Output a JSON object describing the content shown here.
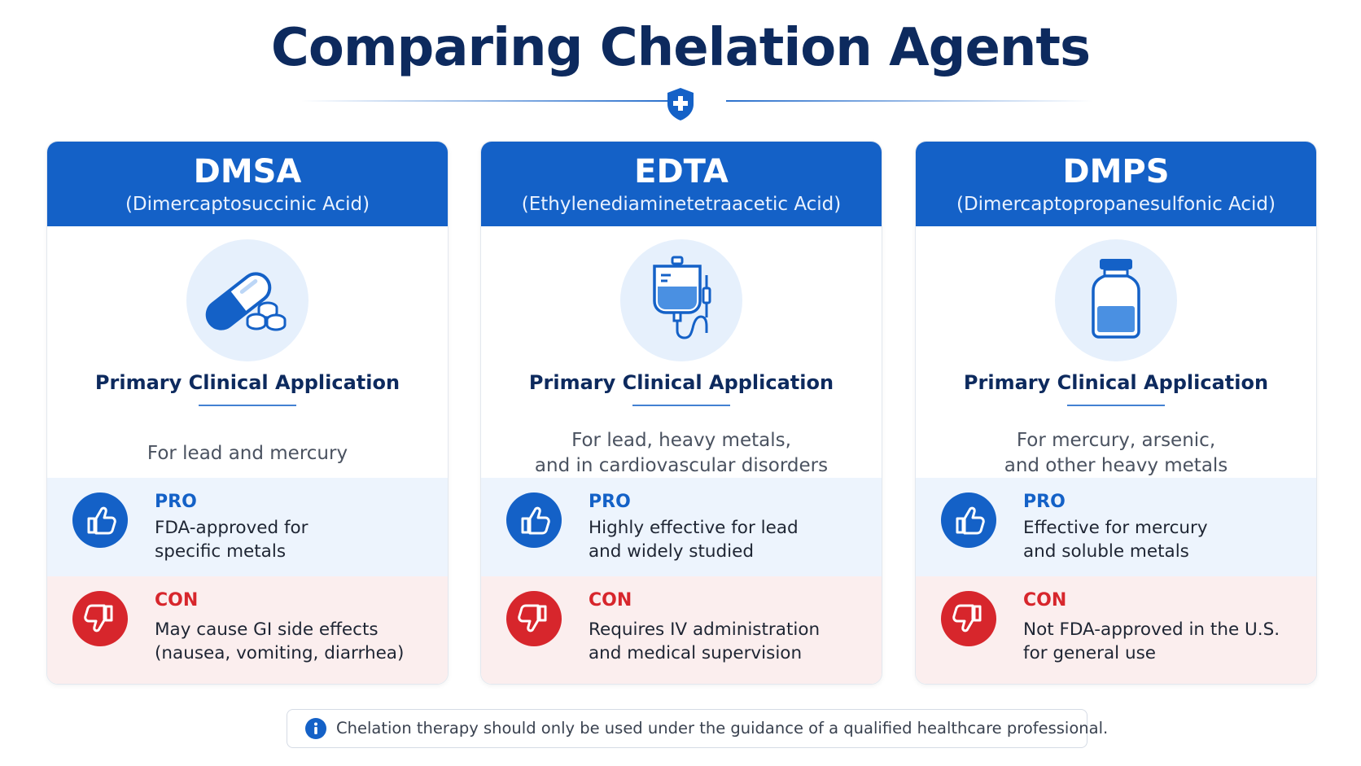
{
  "title": "Comparing Chelation Agents",
  "colors": {
    "navy": "#0d2a5e",
    "blue": "#1461c7",
    "red": "#d7262c",
    "pro_bg": "#edf4fd",
    "con_bg": "#fbeeee"
  },
  "divider_icon": "shield-plus-icon",
  "cards": [
    {
      "abbr": "DMSA",
      "full_name": "(Dimercaptosuccinic Acid)",
      "icon": "capsule-pills-icon",
      "app_title": "Primary Clinical Application",
      "application": "For lead and mercury",
      "pro_label": "PRO",
      "pro_text": "FDA-approved for\nspecific metals",
      "con_label": "CON",
      "con_text": "May cause GI side effects\n(nausea, vomiting, diarrhea)"
    },
    {
      "abbr": "EDTA",
      "full_name": "(Ethylenediaminetetraacetic Acid)",
      "icon": "iv-bag-icon",
      "app_title": "Primary Clinical Application",
      "application": "For lead, heavy metals,\nand in cardiovascular disorders",
      "pro_label": "PRO",
      "pro_text": "Highly effective for lead\nand widely studied",
      "con_label": "CON",
      "con_text": "Requires IV administration\nand medical supervision"
    },
    {
      "abbr": "DMPS",
      "full_name": "(Dimercaptopropanesulfonic Acid)",
      "icon": "vial-bottle-icon",
      "app_title": "Primary Clinical Application",
      "application": "For mercury, arsenic,\nand other heavy metals",
      "pro_label": "PRO",
      "pro_text": "Effective for mercury\nand soluble metals",
      "con_label": "CON",
      "con_text": "Not FDA-approved in the U.S.\nfor general use"
    }
  ],
  "footer": {
    "icon": "info-icon",
    "text": "Chelation therapy should only be used under the guidance of a qualified healthcare professional."
  }
}
